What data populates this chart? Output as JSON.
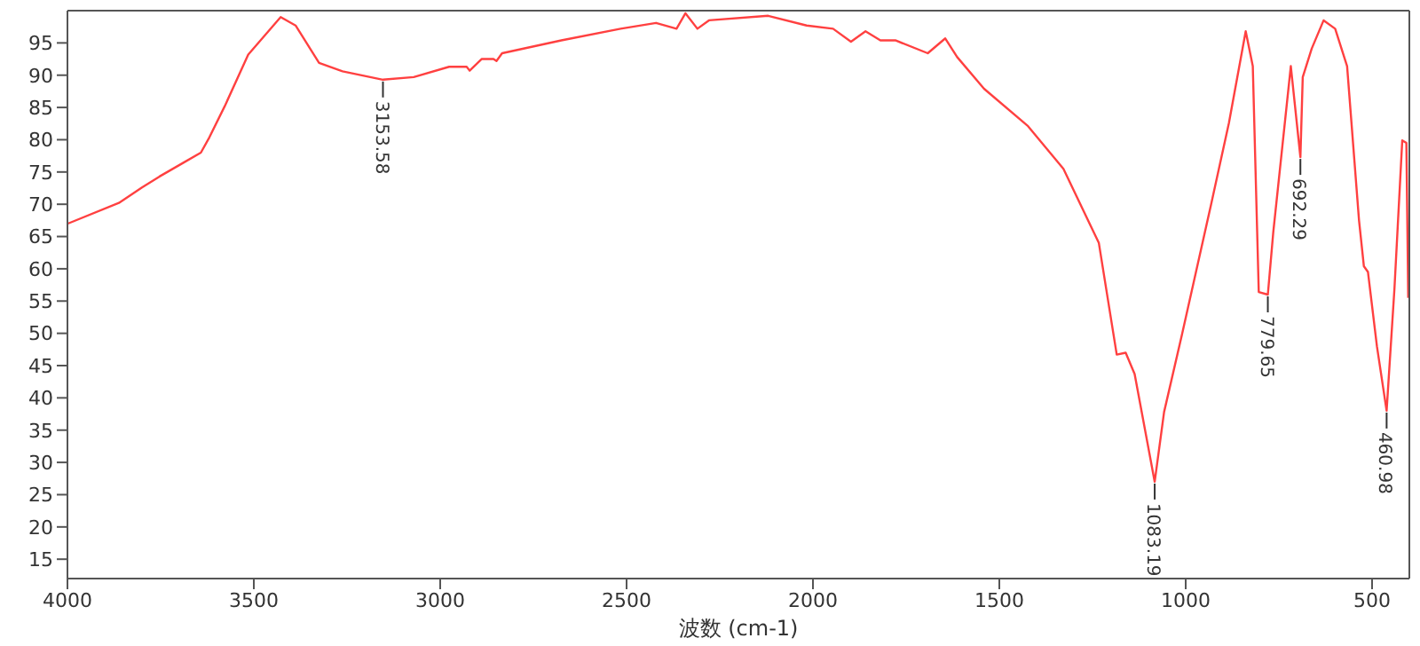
{
  "chart_data": {
    "type": "line",
    "xlabel": "波数 (cm-1)",
    "xlim": [
      4000,
      400
    ],
    "xticks": [
      4000,
      3500,
      3000,
      2500,
      2000,
      1500,
      1000,
      500
    ],
    "ylim": [
      12,
      100
    ],
    "yticks": [
      15,
      20,
      25,
      30,
      35,
      40,
      45,
      50,
      55,
      60,
      65,
      70,
      75,
      80,
      85,
      90,
      95
    ],
    "marker": "none",
    "line_style": "solid",
    "x": [
      3999,
      3862,
      3800,
      3753,
      3690,
      3642,
      3619,
      3578,
      3515,
      3428,
      3388,
      3325,
      3262,
      3153.58,
      3071,
      2976,
      2929,
      2921,
      2889,
      2857,
      2849,
      2834,
      2675,
      2516,
      2421,
      2366,
      2342,
      2310,
      2279,
      2120,
      2017,
      1946,
      1898,
      1859,
      1819,
      1779,
      1692,
      1645,
      1613,
      1541,
      1423,
      1328,
      1233,
      1185,
      1161,
      1137,
      1083.19,
      1058,
      1010,
      931,
      884,
      839,
      820,
      804,
      779.65,
      765,
      718,
      692.29,
      686,
      662,
      630,
      599,
      567,
      535,
      522,
      511,
      487,
      460.98,
      440,
      419,
      408,
      403
    ],
    "series": [
      {
        "color": "#ff4040",
        "values": [
          67,
          70.2,
          72.6,
          74.3,
          76.4,
          78,
          80.4,
          85.2,
          93.2,
          99,
          97.7,
          91.9,
          90.6,
          89.3,
          89.7,
          91.3,
          91.3,
          90.7,
          92.5,
          92.5,
          92.2,
          93.4,
          95.4,
          97.2,
          98.1,
          97.2,
          99.6,
          97.2,
          98.5,
          99.2,
          97.7,
          97.2,
          95.2,
          96.8,
          95.4,
          95.4,
          93.4,
          95.7,
          92.8,
          87.9,
          82.1,
          75.5,
          64,
          46.7,
          47,
          43.7,
          27,
          37.8,
          49.8,
          70.2,
          82.6,
          96.8,
          91.4,
          56.4,
          56,
          65.7,
          91.4,
          77.3,
          89.7,
          94.1,
          98.5,
          97.2,
          91.4,
          67.5,
          60.4,
          59.5,
          48,
          38,
          56.9,
          79.9,
          79.5,
          55.5
        ]
      }
    ],
    "annotations": [
      {
        "text": "3153.58",
        "x": 3153.58,
        "y": 89.3
      },
      {
        "text": "1083.19",
        "x": 1083.19,
        "y": 27
      },
      {
        "text": "779.65",
        "x": 779.65,
        "y": 56
      },
      {
        "text": "692.29",
        "x": 692.29,
        "y": 77.3
      },
      {
        "text": "460.98",
        "x": 460.98,
        "y": 38
      }
    ]
  }
}
